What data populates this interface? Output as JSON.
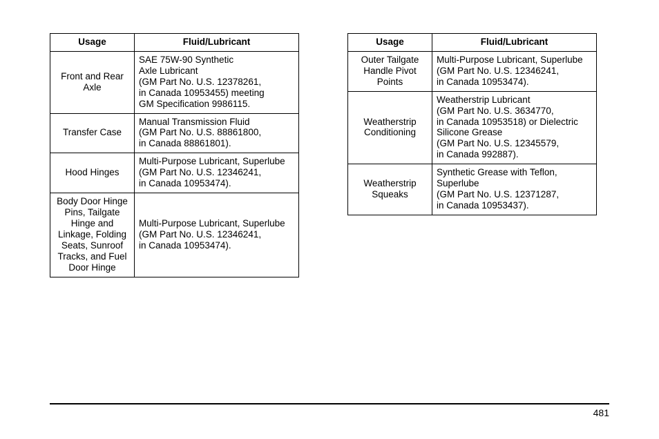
{
  "page_number": "481",
  "left_table": {
    "headers": [
      "Usage",
      "Fluid/Lubricant"
    ],
    "rows": [
      {
        "usage": "Front and Rear Axle",
        "fluid": "SAE 75W-90 Synthetic\nAxle Lubricant\n(GM Part No. U.S. 12378261,\nin Canada 10953455) meeting\nGM Specification 9986115."
      },
      {
        "usage": "Transfer Case",
        "fluid": "Manual Transmission Fluid\n(GM Part No. U.S. 88861800,\nin Canada 88861801)."
      },
      {
        "usage": "Hood Hinges",
        "fluid": "Multi-Purpose Lubricant, Superlube\n(GM Part No. U.S. 12346241,\nin Canada 10953474)."
      },
      {
        "usage": "Body Door Hinge Pins, Tailgate Hinge and Linkage, Folding Seats, Sunroof Tracks, and Fuel Door Hinge",
        "fluid": "Multi-Purpose Lubricant, Superlube\n(GM Part No. U.S. 12346241,\nin Canada 10953474)."
      }
    ]
  },
  "right_table": {
    "headers": [
      "Usage",
      "Fluid/Lubricant"
    ],
    "rows": [
      {
        "usage": "Outer Tailgate Handle Pivot Points",
        "fluid": "Multi-Purpose Lubricant, Superlube\n(GM Part No. U.S. 12346241,\nin Canada 10953474)."
      },
      {
        "usage": "Weatherstrip Conditioning",
        "fluid": "Weatherstrip Lubricant\n(GM Part No. U.S. 3634770,\nin Canada 10953518) or Dielectric\nSilicone Grease\n(GM Part No. U.S. 12345579,\nin Canada 992887)."
      },
      {
        "usage": "Weatherstrip Squeaks",
        "fluid": "Synthetic Grease with Teflon,\nSuperlube\n(GM Part No. U.S. 12371287,\nin Canada 10953437)."
      }
    ]
  }
}
